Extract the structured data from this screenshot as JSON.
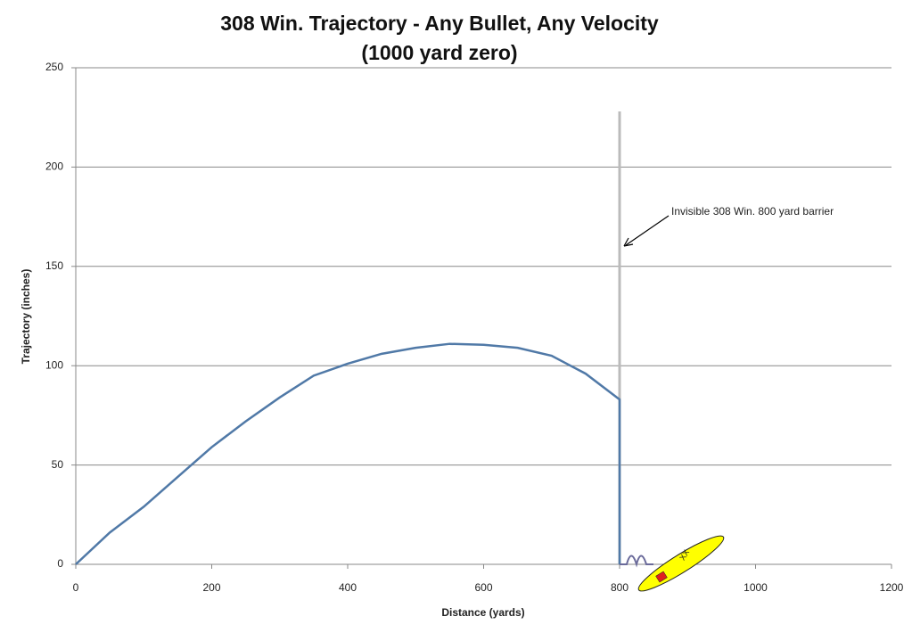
{
  "chart_data": {
    "type": "line",
    "title": "308 Win. Trajectory - Any Bullet, Any Velocity",
    "subtitle": "(1000 yard zero)",
    "x_label": "Distance (yards)",
    "y_label": "Trajectory (inches)",
    "annotation": "Invisible 308 Win. 800 yard barrier",
    "xlim": [
      0,
      1200
    ],
    "xticks": [
      0,
      200,
      400,
      600,
      800,
      1000,
      1200
    ],
    "ylim": [
      0,
      250
    ],
    "yticks": [
      0,
      50,
      100,
      150,
      200,
      250
    ],
    "grid": true,
    "series": [
      {
        "color": "#5079a7",
        "x": [
          0,
          50,
          100,
          150,
          200,
          250,
          300,
          350,
          400,
          450,
          500,
          550,
          600,
          650,
          700,
          750,
          800,
          800
        ],
        "values": [
          0,
          16,
          29,
          44,
          59,
          72,
          84,
          95,
          101,
          106,
          109,
          111,
          110.5,
          109,
          105,
          96,
          83,
          0
        ]
      }
    ],
    "barrier": {
      "x": 800,
      "top": 228,
      "color": "#bbbbbb"
    }
  }
}
